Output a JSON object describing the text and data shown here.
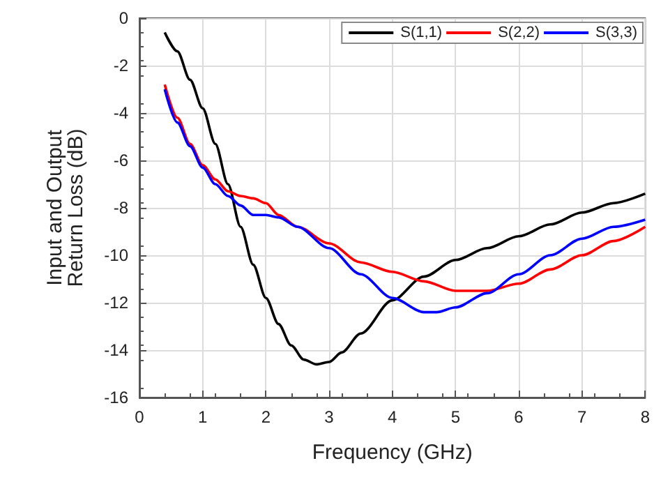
{
  "chart_data": {
    "type": "line",
    "xlabel": "Frequency (GHz)",
    "ylabel": "Input and Output\nReturn Loss (dB)",
    "xlim": [
      0,
      8
    ],
    "xticks": [
      0,
      1,
      2,
      3,
      4,
      5,
      6,
      7,
      8
    ],
    "ylim": [
      -16,
      0
    ],
    "yticks": [
      -16,
      -14,
      -12,
      -10,
      -8,
      -6,
      -4,
      -2,
      0
    ],
    "grid": true,
    "legend": "top right",
    "marker": "none",
    "line_style": "solid",
    "series": [
      {
        "name": "S(1,1)",
        "color": "#000000",
        "x": [
          0.4,
          0.6,
          0.8,
          1,
          1.2,
          1.4,
          1.6,
          1.8,
          2,
          2.2,
          2.4,
          2.6,
          2.8,
          3,
          3.2,
          3.5,
          4,
          4.5,
          5,
          5.5,
          6,
          6.5,
          7,
          7.5,
          8
        ],
        "values": [
          -0.6,
          -1.4,
          -2.6,
          -3.8,
          -5.3,
          -7,
          -8.8,
          -10.4,
          -11.8,
          -12.9,
          -13.8,
          -14.4,
          -14.6,
          -14.5,
          -14.1,
          -13.3,
          -11.9,
          -10.9,
          -10.2,
          -9.7,
          -9.2,
          -8.7,
          -8.2,
          -7.8,
          -7.4
        ]
      },
      {
        "name": "S(2,2)",
        "color": "#ff0000",
        "x": [
          0.4,
          0.6,
          0.8,
          1,
          1.2,
          1.4,
          1.6,
          1.8,
          2,
          2.2,
          2.5,
          3,
          3.5,
          4,
          4.5,
          5,
          5.5,
          6,
          6.5,
          7,
          7.5,
          8
        ],
        "values": [
          -2.8,
          -4.2,
          -5.3,
          -6.2,
          -6.8,
          -7.3,
          -7.5,
          -7.6,
          -7.8,
          -8.3,
          -8.8,
          -9.5,
          -10.3,
          -10.7,
          -11.1,
          -11.5,
          -11.5,
          -11.2,
          -10.6,
          -10,
          -9.4,
          -8.8
        ]
      },
      {
        "name": "S(3,3)",
        "color": "#0000ff",
        "x": [
          0.4,
          0.6,
          0.8,
          1,
          1.2,
          1.4,
          1.6,
          1.8,
          2,
          2.2,
          2.5,
          3,
          3.5,
          4,
          4.5,
          4.7,
          5,
          5.5,
          6,
          6.5,
          7,
          7.5,
          8
        ],
        "values": [
          -3,
          -4.4,
          -5.4,
          -6.3,
          -7,
          -7.5,
          -7.9,
          -8.3,
          -8.3,
          -8.4,
          -8.8,
          -9.7,
          -10.8,
          -11.8,
          -12.4,
          -12.4,
          -12.2,
          -11.6,
          -10.8,
          -10,
          -9.3,
          -8.8,
          -8.5
        ]
      }
    ]
  }
}
